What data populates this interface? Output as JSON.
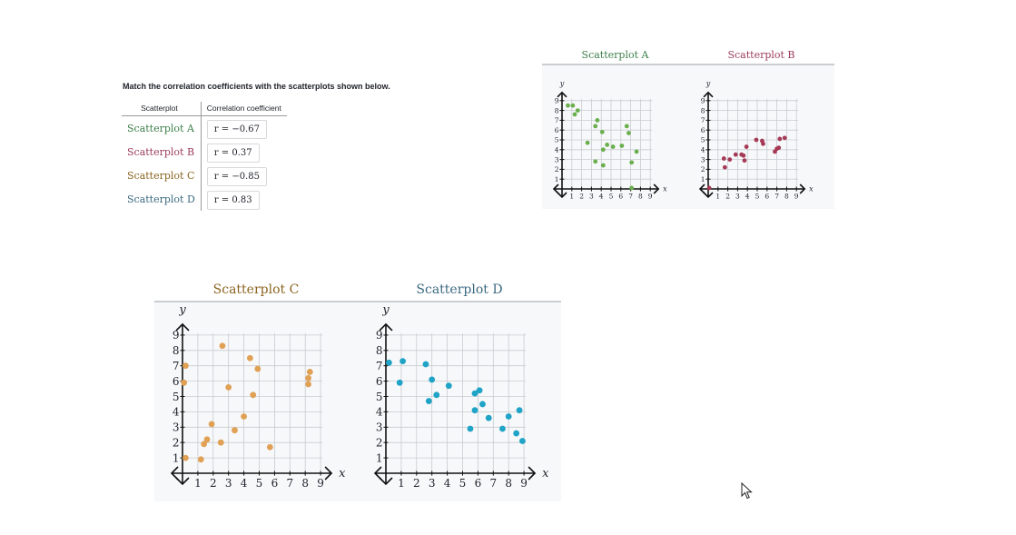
{
  "prompt": "Match the correlation coefficients with the scatterplots shown below.",
  "table": {
    "col_scatterplot": "Scatterplot",
    "col_coefficient": "Correlation coefficient",
    "rows": [
      {
        "name": "Scatterplot A",
        "color": "#3d7f4a",
        "coef": "r = −0.67"
      },
      {
        "name": "Scatterplot B",
        "color": "#9b3c5a",
        "coef": "r = 0.37"
      },
      {
        "name": "Scatterplot C",
        "color": "#8b6420",
        "coef": "r = −0.85"
      },
      {
        "name": "Scatterplot D",
        "color": "#3b6a80",
        "coef": "r = 0.83"
      }
    ]
  },
  "icons": {
    "cursor": "mouse-pointer-icon"
  },
  "chart_data": [
    {
      "type": "scatter",
      "title": "Scatterplot A",
      "title_color": "#3d7f4a",
      "point_color": "#6aaf4e",
      "xlabel": "x",
      "ylabel": "y",
      "xlim": [
        0,
        9
      ],
      "ylim": [
        0,
        9
      ],
      "ticks": [
        "1",
        "2",
        "3",
        "4",
        "5",
        "6",
        "7",
        "8",
        "9"
      ],
      "grid": true,
      "points": [
        [
          0.6,
          8.5
        ],
        [
          1.1,
          8.5
        ],
        [
          1.6,
          8.0
        ],
        [
          1.3,
          7.6
        ],
        [
          2.6,
          4.7
        ],
        [
          3.4,
          6.4
        ],
        [
          3.6,
          7.0
        ],
        [
          4.1,
          5.8
        ],
        [
          4.2,
          4.0
        ],
        [
          4.6,
          4.5
        ],
        [
          5.2,
          4.3
        ],
        [
          6.1,
          4.4
        ],
        [
          6.6,
          6.4
        ],
        [
          6.8,
          5.7
        ],
        [
          7.1,
          2.7
        ],
        [
          7.6,
          3.8
        ],
        [
          3.4,
          2.8
        ],
        [
          4.2,
          2.4
        ],
        [
          7.1,
          0.1
        ]
      ]
    },
    {
      "type": "scatter",
      "title": "Scatterplot B",
      "title_color": "#9b3c5a",
      "point_color": "#a63a56",
      "xlabel": "x",
      "ylabel": "y",
      "xlim": [
        0,
        9
      ],
      "ylim": [
        0,
        9
      ],
      "ticks": [
        "1",
        "2",
        "3",
        "4",
        "5",
        "6",
        "7",
        "8",
        "9"
      ],
      "grid": true,
      "points": [
        [
          0.1,
          0.1
        ],
        [
          1.6,
          3.1
        ],
        [
          1.7,
          2.2
        ],
        [
          2.2,
          3.0
        ],
        [
          2.8,
          3.5
        ],
        [
          3.4,
          3.5
        ],
        [
          3.6,
          3.4
        ],
        [
          3.7,
          2.9
        ],
        [
          3.9,
          4.3
        ],
        [
          4.9,
          5.0
        ],
        [
          5.5,
          4.9
        ],
        [
          5.6,
          4.6
        ],
        [
          6.8,
          3.8
        ],
        [
          7.0,
          4.1
        ],
        [
          7.2,
          4.2
        ],
        [
          7.3,
          5.1
        ],
        [
          7.8,
          5.2
        ]
      ]
    },
    {
      "type": "scatter",
      "title": "Scatterplot C",
      "title_color": "#8b6420",
      "point_color": "#e0a155",
      "xlabel": "x",
      "ylabel": "y",
      "xlim": [
        0,
        9
      ],
      "ylim": [
        0,
        9
      ],
      "ticks": [
        "1",
        "2",
        "3",
        "4",
        "5",
        "6",
        "7",
        "8",
        "9"
      ],
      "grid": true,
      "points": [
        [
          0.1,
          5.9
        ],
        [
          0.2,
          7.0
        ],
        [
          0.2,
          1.0
        ],
        [
          1.2,
          0.9
        ],
        [
          1.4,
          1.9
        ],
        [
          1.6,
          2.2
        ],
        [
          1.9,
          3.2
        ],
        [
          2.5,
          2.0
        ],
        [
          2.6,
          8.3
        ],
        [
          3.0,
          5.6
        ],
        [
          3.4,
          2.8
        ],
        [
          4.0,
          3.7
        ],
        [
          4.4,
          7.5
        ],
        [
          4.6,
          5.1
        ],
        [
          4.9,
          6.8
        ],
        [
          5.7,
          1.7
        ],
        [
          8.2,
          5.8
        ],
        [
          8.2,
          6.2
        ],
        [
          8.3,
          6.6
        ]
      ]
    },
    {
      "type": "scatter",
      "title": "Scatterplot D",
      "title_color": "#3b6a80",
      "point_color": "#1fa3c6",
      "xlabel": "x",
      "ylabel": "y",
      "xlim": [
        0,
        9
      ],
      "ylim": [
        0,
        9
      ],
      "ticks": [
        "1",
        "2",
        "3",
        "4",
        "5",
        "6",
        "7",
        "8",
        "9"
      ],
      "grid": true,
      "points": [
        [
          0.2,
          7.2
        ],
        [
          0.9,
          5.9
        ],
        [
          1.1,
          7.3
        ],
        [
          2.6,
          7.1
        ],
        [
          2.8,
          4.7
        ],
        [
          3.0,
          6.1
        ],
        [
          3.3,
          5.1
        ],
        [
          4.1,
          5.7
        ],
        [
          5.5,
          2.9
        ],
        [
          5.8,
          4.1
        ],
        [
          5.8,
          5.2
        ],
        [
          6.1,
          5.4
        ],
        [
          6.3,
          4.5
        ],
        [
          6.7,
          3.6
        ],
        [
          7.6,
          2.9
        ],
        [
          8.0,
          3.7
        ],
        [
          8.5,
          2.6
        ],
        [
          8.7,
          4.1
        ],
        [
          8.9,
          2.1
        ]
      ]
    }
  ]
}
